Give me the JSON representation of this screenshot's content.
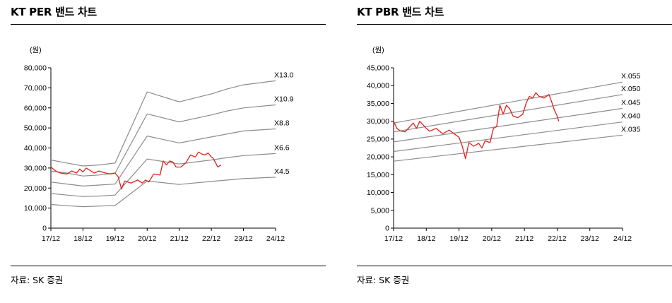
{
  "charts": [
    {
      "title": "KT PER 밴드 차트",
      "source": "자료: SK 증권",
      "chart_data": {
        "type": "line",
        "unit_label": "(원)",
        "x_ticks": [
          "17/12",
          "18/12",
          "19/12",
          "20/12",
          "21/12",
          "22/12",
          "23/12",
          "24/12"
        ],
        "y_ticks": [
          0,
          10000,
          20000,
          30000,
          40000,
          50000,
          60000,
          70000,
          80000
        ],
        "ylim": [
          0,
          80000
        ],
        "xlim": [
          0,
          7
        ],
        "grid": false,
        "bands": [
          {
            "name": "X13.0",
            "points": [
              [
                0,
                34000
              ],
              [
                0.5,
                32500
              ],
              [
                1,
                31000
              ],
              [
                1.5,
                31500
              ],
              [
                2,
                32500
              ],
              [
                3,
                68000
              ],
              [
                4,
                63000
              ],
              [
                5,
                67000
              ],
              [
                5.5,
                69500
              ],
              [
                6,
                71500
              ],
              [
                7,
                73500
              ]
            ]
          },
          {
            "name": "X10.9",
            "points": [
              [
                0,
                28500
              ],
              [
                0.5,
                27500
              ],
              [
                1,
                26000
              ],
              [
                1.5,
                26500
              ],
              [
                2,
                27500
              ],
              [
                3,
                57000
              ],
              [
                4,
                53000
              ],
              [
                5,
                56500
              ],
              [
                5.5,
                58500
              ],
              [
                6,
                60000
              ],
              [
                7,
                61500
              ]
            ]
          },
          {
            "name": "X8.8",
            "points": [
              [
                0,
                23000
              ],
              [
                0.5,
                22000
              ],
              [
                1,
                21000
              ],
              [
                1.5,
                21500
              ],
              [
                2,
                22000
              ],
              [
                3,
                46000
              ],
              [
                4,
                42500
              ],
              [
                5,
                45500
              ],
              [
                5.5,
                47000
              ],
              [
                6,
                48500
              ],
              [
                7,
                49500
              ]
            ]
          },
          {
            "name": "X6.6",
            "points": [
              [
                0,
                17300
              ],
              [
                0.5,
                16500
              ],
              [
                1,
                15800
              ],
              [
                1.5,
                16000
              ],
              [
                2,
                16500
              ],
              [
                3,
                34500
              ],
              [
                4,
                32000
              ],
              [
                5,
                34000
              ],
              [
                5.5,
                35200
              ],
              [
                6,
                36200
              ],
              [
                7,
                37200
              ]
            ]
          },
          {
            "name": "X4.5",
            "points": [
              [
                0,
                11800
              ],
              [
                0.5,
                11200
              ],
              [
                1,
                10700
              ],
              [
                1.5,
                11000
              ],
              [
                2,
                11300
              ],
              [
                3,
                23500
              ],
              [
                4,
                21800
              ],
              [
                5,
                23300
              ],
              [
                5.5,
                24000
              ],
              [
                6,
                24700
              ],
              [
                7,
                25400
              ]
            ]
          }
        ],
        "price": [
          [
            0,
            30500
          ],
          [
            0.15,
            28500
          ],
          [
            0.3,
            27500
          ],
          [
            0.5,
            27000
          ],
          [
            0.65,
            28500
          ],
          [
            0.8,
            27500
          ],
          [
            0.9,
            29500
          ],
          [
            1,
            28000
          ],
          [
            1.1,
            30000
          ],
          [
            1.2,
            29000
          ],
          [
            1.35,
            27500
          ],
          [
            1.5,
            28500
          ],
          [
            1.7,
            27500
          ],
          [
            1.85,
            27000
          ],
          [
            2,
            27500
          ],
          [
            2.1,
            25500
          ],
          [
            2.2,
            19500
          ],
          [
            2.3,
            23500
          ],
          [
            2.5,
            22500
          ],
          [
            2.7,
            24000
          ],
          [
            2.85,
            22500
          ],
          [
            2.95,
            24000
          ],
          [
            3.05,
            23000
          ],
          [
            3.2,
            27000
          ],
          [
            3.4,
            26500
          ],
          [
            3.5,
            33500
          ],
          [
            3.6,
            31500
          ],
          [
            3.7,
            33500
          ],
          [
            3.8,
            33000
          ],
          [
            3.9,
            30500
          ],
          [
            4.05,
            30500
          ],
          [
            4.2,
            32500
          ],
          [
            4.35,
            36500
          ],
          [
            4.5,
            35500
          ],
          [
            4.6,
            38000
          ],
          [
            4.7,
            37000
          ],
          [
            4.8,
            36500
          ],
          [
            4.9,
            37500
          ],
          [
            5.0,
            35500
          ],
          [
            5.05,
            35000
          ],
          [
            5.15,
            32000
          ],
          [
            5.2,
            30500
          ],
          [
            5.3,
            31500
          ]
        ]
      }
    },
    {
      "title": "KT PBR 밴드 차트",
      "source": "자료: SK 증권",
      "chart_data": {
        "type": "line",
        "unit_label": "(원)",
        "x_ticks": [
          "17/12",
          "18/12",
          "19/12",
          "20/12",
          "21/12",
          "22/12",
          "23/12",
          "24/12"
        ],
        "y_ticks": [
          0,
          5000,
          10000,
          15000,
          20000,
          25000,
          30000,
          35000,
          40000,
          45000
        ],
        "ylim": [
          0,
          45000
        ],
        "xlim": [
          0,
          7
        ],
        "grid": false,
        "bands": [
          {
            "name": "X.055",
            "points": [
              [
                0,
                29500
              ],
              [
                7,
                41000
              ]
            ]
          },
          {
            "name": "X.050",
            "points": [
              [
                0,
                27000
              ],
              [
                7,
                37500
              ]
            ]
          },
          {
            "name": "X.045",
            "points": [
              [
                0,
                24200
              ],
              [
                7,
                33600
              ]
            ]
          },
          {
            "name": "X.040",
            "points": [
              [
                0,
                21500
              ],
              [
                7,
                29800
              ]
            ]
          },
          {
            "name": "X.035",
            "points": [
              [
                0,
                18800
              ],
              [
                7,
                26100
              ]
            ]
          }
        ],
        "price": [
          [
            0,
            30000
          ],
          [
            0.1,
            28000
          ],
          [
            0.2,
            27300
          ],
          [
            0.35,
            27000
          ],
          [
            0.5,
            28500
          ],
          [
            0.6,
            29500
          ],
          [
            0.7,
            28000
          ],
          [
            0.8,
            30000
          ],
          [
            0.9,
            29000
          ],
          [
            1.0,
            28000
          ],
          [
            1.1,
            27200
          ],
          [
            1.3,
            28000
          ],
          [
            1.5,
            26500
          ],
          [
            1.7,
            27500
          ],
          [
            1.85,
            26500
          ],
          [
            2.0,
            25500
          ],
          [
            2.1,
            23000
          ],
          [
            2.2,
            19500
          ],
          [
            2.3,
            24000
          ],
          [
            2.45,
            23000
          ],
          [
            2.6,
            23800
          ],
          [
            2.7,
            22500
          ],
          [
            2.8,
            24500
          ],
          [
            2.95,
            24000
          ],
          [
            3.05,
            28000
          ],
          [
            3.15,
            28500
          ],
          [
            3.25,
            34500
          ],
          [
            3.35,
            32000
          ],
          [
            3.45,
            34500
          ],
          [
            3.55,
            33500
          ],
          [
            3.65,
            31500
          ],
          [
            3.8,
            31000
          ],
          [
            3.95,
            32000
          ],
          [
            4.05,
            35000
          ],
          [
            4.15,
            37000
          ],
          [
            4.25,
            36500
          ],
          [
            4.35,
            38000
          ],
          [
            4.45,
            37000
          ],
          [
            4.6,
            36500
          ],
          [
            4.75,
            37500
          ],
          [
            4.85,
            35000
          ],
          [
            4.9,
            33500
          ],
          [
            5.0,
            31500
          ],
          [
            5.05,
            30000
          ]
        ]
      }
    }
  ]
}
